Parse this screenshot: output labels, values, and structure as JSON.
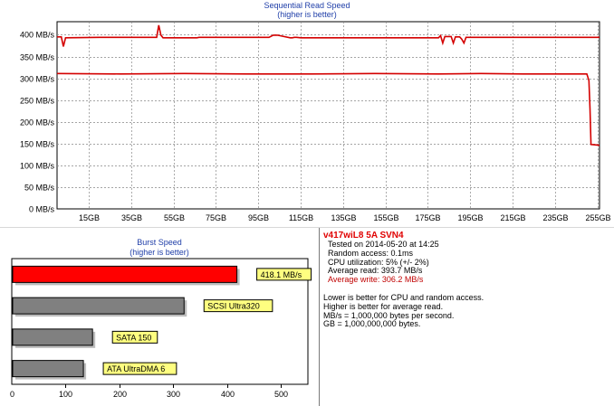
{
  "chart_data": [
    {
      "type": "line",
      "title": "Sequential Read Speed",
      "subtitle": "(higher is better)",
      "x_ticks": [
        "15GB",
        "35GB",
        "55GB",
        "75GB",
        "95GB",
        "115GB",
        "135GB",
        "155GB",
        "175GB",
        "195GB",
        "215GB",
        "235GB",
        "255GB"
      ],
      "y_ticks": [
        "0 MB/s",
        "50 MB/s",
        "100 MB/s",
        "150 MB/s",
        "200 MB/s",
        "250 MB/s",
        "300 MB/s",
        "350 MB/s",
        "400 MB/s"
      ],
      "xlim": [
        0,
        256
      ],
      "ylim": [
        0,
        430
      ],
      "grid": true,
      "colors": {
        "line": "#d40000",
        "background": "#ffffff",
        "grid": "#888888"
      },
      "series": [
        {
          "x": [
            0,
            2,
            3,
            4,
            20,
            47,
            48,
            49,
            50,
            66,
            67,
            100,
            102,
            104,
            110,
            111,
            112,
            113,
            115,
            180,
            181,
            182,
            183,
            186,
            187,
            188,
            189,
            190,
            191,
            192,
            193,
            256
          ],
          "y": [
            395,
            395,
            373,
            393,
            394,
            394,
            422,
            399,
            393,
            393,
            394,
            394,
            399,
            399,
            393,
            393,
            394,
            394,
            393,
            393,
            398,
            381,
            396,
            396,
            381,
            395,
            395,
            395,
            390,
            381,
            394,
            394
          ]
        },
        {
          "x": [
            0,
            30,
            60,
            90,
            120,
            150,
            180,
            200,
            220,
            240,
            250,
            251,
            251.5,
            252,
            254,
            256
          ],
          "y": [
            311,
            310,
            311,
            310,
            310,
            311,
            310,
            311,
            310,
            310,
            310,
            295,
            230,
            148,
            147,
            146
          ]
        }
      ]
    },
    {
      "type": "bar",
      "orientation": "horizontal",
      "title": "Burst Speed",
      "subtitle": "(higher is better)",
      "categories": [
        "418.1 MB/s",
        "SCSI Ultra320",
        "SATA 150",
        "ATA UltraDMA 6"
      ],
      "values": [
        418.1,
        320,
        150,
        133
      ],
      "x_ticks": [
        "0",
        "100",
        "200",
        "300",
        "400",
        "500"
      ],
      "xlim": [
        0,
        550
      ],
      "colors": {
        "highlight": "#ff0000",
        "reference": "#808080",
        "label_bg": "#ffff80"
      }
    }
  ],
  "info": {
    "heading": "v417wiL8 5A SVN4",
    "tested": "Tested on 2014-05-20 at 14:25",
    "random_access": "Random access: 0.1ms",
    "cpu": "CPU utilization: 5% (+/- 2%)",
    "avg_read": "Average read: 393.7 MB/s",
    "avg_write": "Average write: 306.2 MB/s",
    "notes": [
      "Lower is better for CPU and random access.",
      "Higher is better for average read.",
      "MB/s = 1,000,000 bytes per second.",
      "GB = 1,000,000,000 bytes."
    ]
  }
}
